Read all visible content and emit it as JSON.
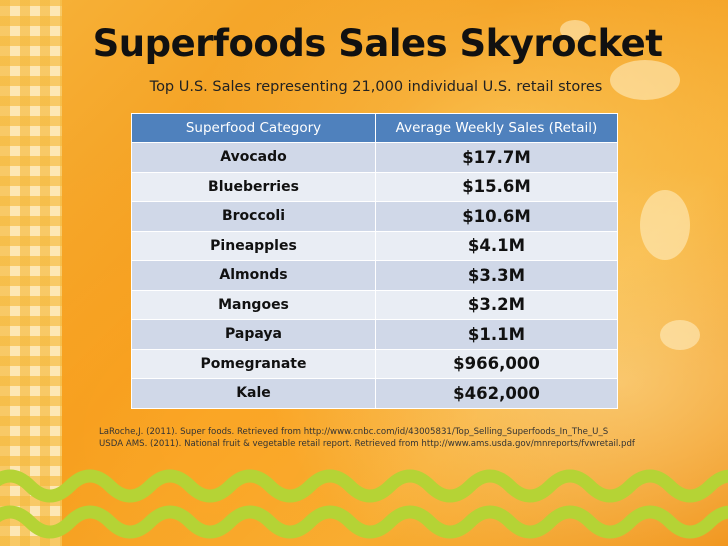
{
  "slide": {
    "title": "Superfoods Sales Skyrocket",
    "subtitle": "Top U.S. Sales representing 21,000 individual U.S. retail stores"
  },
  "table": {
    "headers": [
      "Superfood Category",
      "Average Weekly Sales (Retail)"
    ],
    "rows": [
      {
        "category": "Avocado",
        "sales": "$17.7M"
      },
      {
        "category": "Blueberries",
        "sales": "$15.6M"
      },
      {
        "category": "Broccoli",
        "sales": "$10.6M"
      },
      {
        "category": "Pineapples",
        "sales": "$4.1M"
      },
      {
        "category": "Almonds",
        "sales": "$3.3M"
      },
      {
        "category": "Mangoes",
        "sales": "$3.2M"
      },
      {
        "category": "Papaya",
        "sales": "$1.1M"
      },
      {
        "category": "Pomegranate",
        "sales": "$966,000"
      },
      {
        "category": "Kale",
        "sales": "$462,000"
      }
    ]
  },
  "references": [
    "LaRoche,J. (2011). Super foods. Retrieved from http://www.cnbc.com/id/43005831/Top_Selling_Superfoods_In_The_U_S",
    "USDA AMS. (2011). National fruit & vegetable retail report. Retrieved from http://www.ams.usda.gov/mnreports/fvwretail.pdf"
  ],
  "colors": {
    "header_blue": "#4f81bd",
    "row_light": "#e9edf4",
    "row_dark": "#d0d8e8",
    "background_orange": "#f4a11d",
    "ricrac_green": "#b5d335"
  }
}
